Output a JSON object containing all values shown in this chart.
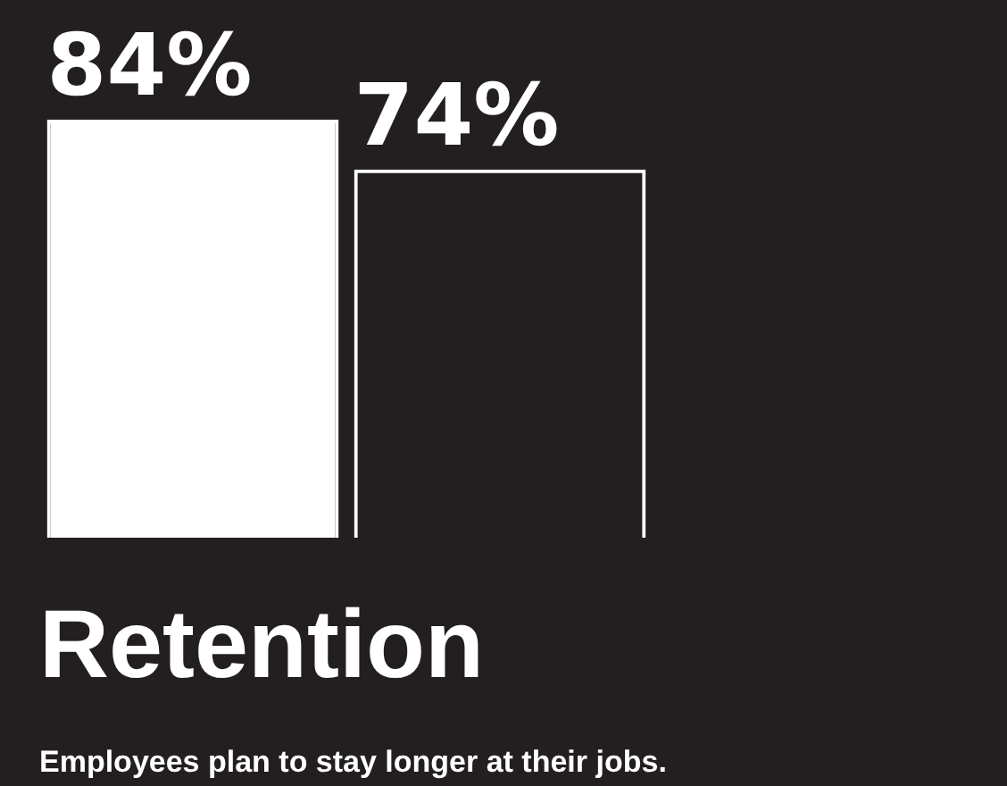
{
  "chart_data": {
    "type": "bar",
    "title": "Retention",
    "subtitle": "Employees plan to stay longer at their jobs.",
    "categories": [
      null,
      null
    ],
    "values": [
      84,
      74
    ],
    "value_labels": [
      "84%",
      "74%"
    ],
    "colors": [
      "#ffffff",
      "#ffffff"
    ],
    "tick_labels": false
  }
}
